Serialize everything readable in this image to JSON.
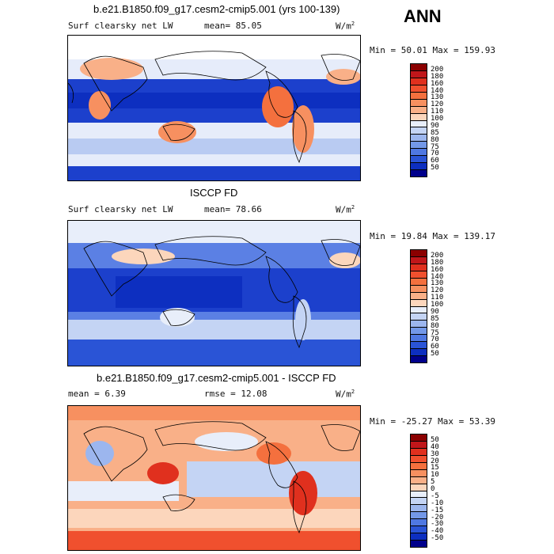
{
  "season": "ANN",
  "panels": [
    {
      "title": "b.e21.B1850.f09_g17.cesm2-cmip5.001 (yrs 100-139)",
      "left_label": "Surf clearsky net LW",
      "mid_label": "mean=  85.05",
      "units": "W/m",
      "units_exp": "2",
      "minmax": "Min =  50.01 Max =  159.93"
    },
    {
      "title": "ISCCP FD",
      "left_label": "Surf clearsky net LW",
      "mid_label": "mean=  78.66",
      "units": "W/m",
      "units_exp": "2",
      "minmax": "Min =  19.84 Max =  139.17"
    },
    {
      "title": "b.e21.B1850.f09_g17.cesm2-cmip5.001 - ISCCP FD",
      "left_label": "mean =   6.39",
      "mid_label": "rmse =  12.08",
      "units": "W/m",
      "units_exp": "2",
      "minmax": "Min = -25.27 Max =   53.39"
    }
  ],
  "chart_data": [
    {
      "type": "heatmap",
      "title": "b.e21.B1850.f09_g17.cesm2-cmip5.001 (yrs 100-139)",
      "variable": "Surf clearsky net LW",
      "units": "W/m2",
      "mean": 85.05,
      "min": 50.01,
      "max": 159.93,
      "colorbar_levels": [
        "200",
        "180",
        "160",
        "140",
        "130",
        "120",
        "110",
        "100",
        "90",
        "85",
        "80",
        "75",
        "70",
        "60",
        "50"
      ],
      "colorbar_colors": [
        "#8b0000",
        "#c0161a",
        "#e0301e",
        "#f0502e",
        "#f4703e",
        "#f79060",
        "#f9b088",
        "#fcd6bc",
        "#e8eefa",
        "#c4d4f4",
        "#9cb6ee",
        "#7398e8",
        "#4f78e2",
        "#2a54d6",
        "#0d2fc0",
        "#00008b"
      ]
    },
    {
      "type": "heatmap",
      "title": "ISCCP FD",
      "variable": "Surf clearsky net LW",
      "units": "W/m2",
      "mean": 78.66,
      "min": 19.84,
      "max": 139.17,
      "colorbar_levels": [
        "200",
        "180",
        "160",
        "140",
        "130",
        "120",
        "110",
        "100",
        "90",
        "85",
        "80",
        "75",
        "70",
        "60",
        "50"
      ],
      "colorbar_colors": [
        "#8b0000",
        "#c0161a",
        "#e0301e",
        "#f0502e",
        "#f4703e",
        "#f79060",
        "#f9b088",
        "#fcd6bc",
        "#e8eefa",
        "#c4d4f4",
        "#9cb6ee",
        "#7398e8",
        "#4f78e2",
        "#2a54d6",
        "#0d2fc0",
        "#00008b"
      ]
    },
    {
      "type": "heatmap",
      "title": "b.e21.B1850.f09_g17.cesm2-cmip5.001 - ISCCP FD",
      "units": "W/m2",
      "mean": 6.39,
      "rmse": 12.08,
      "min": -25.27,
      "max": 53.39,
      "colorbar_levels": [
        "50",
        "40",
        "30",
        "20",
        "15",
        "10",
        "5",
        "0",
        "-5",
        "-10",
        "-15",
        "-20",
        "-30",
        "-40",
        "-50"
      ],
      "colorbar_colors": [
        "#8b0000",
        "#c0161a",
        "#e0301e",
        "#f0502e",
        "#f4703e",
        "#f79060",
        "#f9b088",
        "#fcd6bc",
        "#e8eefa",
        "#c4d4f4",
        "#9cb6ee",
        "#7398e8",
        "#4f78e2",
        "#2a54d6",
        "#0d2fc0",
        "#00008b"
      ]
    }
  ]
}
